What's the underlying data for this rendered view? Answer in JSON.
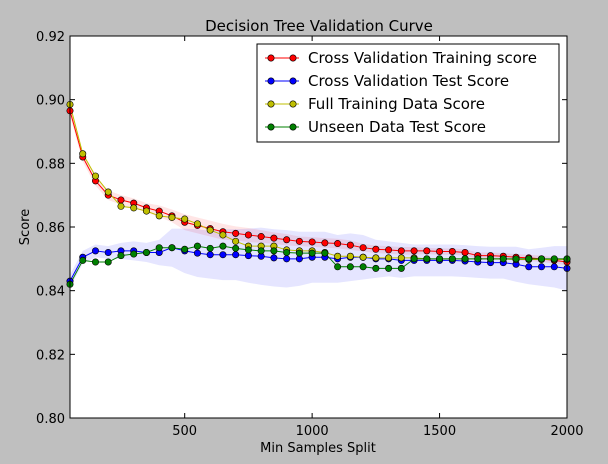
{
  "chart_data": {
    "type": "line",
    "title": "Decision Tree Validation Curve",
    "xlabel": "Min Samples Split",
    "ylabel": "Score",
    "xlim": [
      50,
      2000
    ],
    "ylim": [
      0.8,
      0.92
    ],
    "xticks": [
      500,
      1000,
      1500,
      2000
    ],
    "xtick_labels": [
      "500",
      "1000",
      "1500",
      "2000"
    ],
    "yticks": [
      0.8,
      0.82,
      0.84,
      0.86,
      0.88,
      0.9,
      0.92
    ],
    "ytick_labels": [
      "0.80",
      "0.82",
      "0.84",
      "0.86",
      "0.88",
      "0.90",
      "0.92"
    ],
    "grid": false,
    "legend_position": "top-right",
    "x": [
      50,
      100,
      150,
      200,
      250,
      300,
      350,
      400,
      450,
      500,
      550,
      600,
      650,
      700,
      750,
      800,
      850,
      900,
      950,
      1000,
      1050,
      1100,
      1150,
      1200,
      1250,
      1300,
      1350,
      1400,
      1450,
      1500,
      1550,
      1600,
      1650,
      1700,
      1750,
      1800,
      1850,
      1900,
      1950,
      2000
    ],
    "series": [
      {
        "name": "Cross Validation Training score",
        "color": "#ff0000",
        "band_color": "#ff0000",
        "values": [
          0.8965,
          0.882,
          0.8745,
          0.87,
          0.8685,
          0.8675,
          0.866,
          0.865,
          0.8635,
          0.8615,
          0.8605,
          0.8595,
          0.8585,
          0.858,
          0.8575,
          0.857,
          0.8565,
          0.856,
          0.8555,
          0.8553,
          0.855,
          0.8548,
          0.8543,
          0.8535,
          0.853,
          0.8528,
          0.8525,
          0.8525,
          0.8525,
          0.8523,
          0.8523,
          0.852,
          0.851,
          0.851,
          0.8508,
          0.8505,
          0.8503,
          0.85,
          0.8495,
          0.849
        ],
        "band": [
          0.0015,
          0.0015,
          0.0015,
          0.0015,
          0.0015,
          0.0015,
          0.0015,
          0.0018,
          0.002,
          0.0025,
          0.0025,
          0.0025,
          0.0025,
          0.0022,
          0.0022,
          0.002,
          0.0018,
          0.0018,
          0.0015,
          0.0015,
          0.0015,
          0.0015,
          0.0015,
          0.0012,
          0.0012,
          0.0012,
          0.0012,
          0.0012,
          0.001,
          0.001,
          0.001,
          0.001,
          0.001,
          0.001,
          0.001,
          0.001,
          0.001,
          0.001,
          0.001,
          0.001
        ]
      },
      {
        "name": "Cross Validation Test Score",
        "color": "#0000ff",
        "band_color": "#0000ff",
        "values": [
          0.843,
          0.8505,
          0.8525,
          0.852,
          0.8525,
          0.8525,
          0.852,
          0.852,
          0.8535,
          0.8525,
          0.8518,
          0.8513,
          0.8513,
          0.8513,
          0.851,
          0.8508,
          0.8503,
          0.85,
          0.85,
          0.8505,
          0.8505,
          0.85,
          0.8505,
          0.8505,
          0.85,
          0.85,
          0.8495,
          0.8495,
          0.8495,
          0.8495,
          0.8495,
          0.8493,
          0.849,
          0.8488,
          0.8488,
          0.8483,
          0.8475,
          0.8475,
          0.8475,
          0.847
        ],
        "band": [
          0.002,
          0.002,
          0.002,
          0.002,
          0.0025,
          0.003,
          0.003,
          0.004,
          0.006,
          0.007,
          0.0075,
          0.0075,
          0.008,
          0.008,
          0.0085,
          0.009,
          0.009,
          0.009,
          0.0085,
          0.008,
          0.008,
          0.0075,
          0.0075,
          0.007,
          0.006,
          0.0055,
          0.0055,
          0.005,
          0.005,
          0.005,
          0.005,
          0.005,
          0.005,
          0.005,
          0.005,
          0.0055,
          0.0055,
          0.006,
          0.0065,
          0.007
        ]
      },
      {
        "name": "Full Training Data Score",
        "color": "#bfbf00",
        "values": [
          0.8985,
          0.883,
          0.876,
          0.871,
          0.8665,
          0.866,
          0.865,
          0.8635,
          0.863,
          0.8625,
          0.861,
          0.859,
          0.8575,
          0.8555,
          0.854,
          0.854,
          0.854,
          0.8528,
          0.8525,
          0.8525,
          0.852,
          0.8508,
          0.8508,
          0.8505,
          0.8503,
          0.8503,
          0.8503,
          0.8503,
          0.85,
          0.85,
          0.85,
          0.85,
          0.85,
          0.85,
          0.85,
          0.8498,
          0.8498,
          0.8498,
          0.8498,
          0.8498
        ]
      },
      {
        "name": "Unseen Data Test Score",
        "color": "#008000",
        "values": [
          0.842,
          0.8495,
          0.849,
          0.849,
          0.851,
          0.8515,
          0.852,
          0.8535,
          0.8535,
          0.853,
          0.854,
          0.8533,
          0.854,
          0.8533,
          0.8528,
          0.8525,
          0.8525,
          0.852,
          0.8518,
          0.8518,
          0.8518,
          0.8475,
          0.8475,
          0.8475,
          0.847,
          0.847,
          0.847,
          0.85,
          0.85,
          0.85,
          0.85,
          0.85,
          0.85,
          0.85,
          0.85,
          0.85,
          0.85,
          0.85,
          0.85,
          0.85
        ]
      }
    ]
  }
}
